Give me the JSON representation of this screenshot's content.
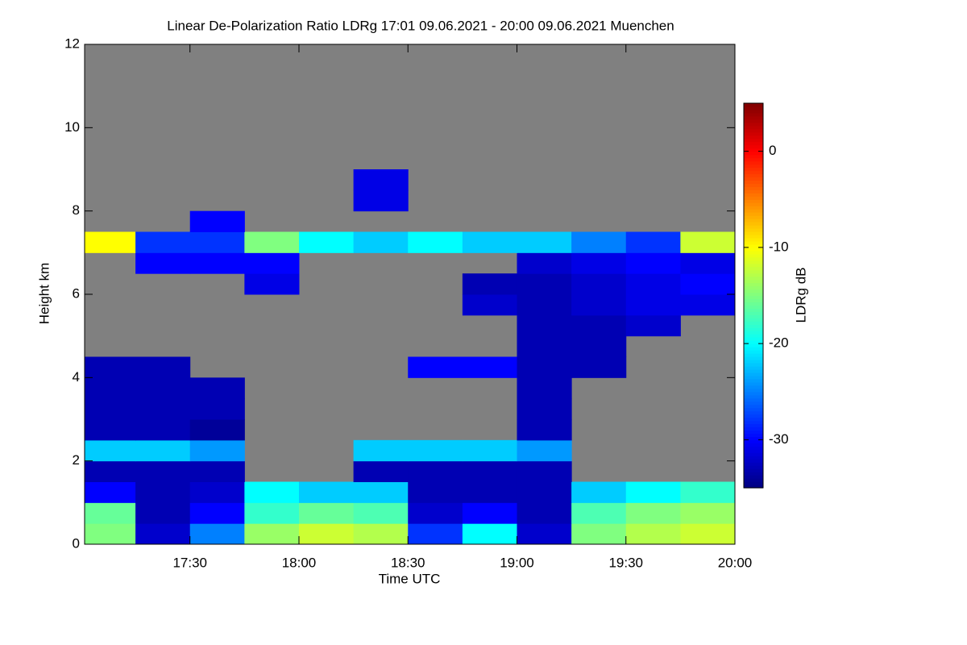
{
  "chart_data": {
    "type": "heatmap",
    "title": "Linear De-Polarization Ratio LDRg   17:01 09.06.2021 - 20:00 09.06.2021 Muenchen",
    "x_label": "Time UTC",
    "y_label": "Height km",
    "colorbar_label": "LDRg dB",
    "colormap": "jet",
    "background": "#808080",
    "xlim": [
      17.0167,
      20.0
    ],
    "xticks": [
      {
        "value": 17.5,
        "label": "17:30"
      },
      {
        "value": 18.0,
        "label": "18:00"
      },
      {
        "value": 18.5,
        "label": "18:30"
      },
      {
        "value": 19.0,
        "label": "19:00"
      },
      {
        "value": 19.5,
        "label": "19:30"
      },
      {
        "value": 20.0,
        "label": "20:00"
      }
    ],
    "ylim": [
      0,
      12
    ],
    "yticks": [
      0,
      2,
      4,
      6,
      8,
      10,
      12
    ],
    "clim": [
      -35,
      5
    ],
    "cticks": [
      0,
      -10,
      -20,
      -30
    ],
    "x": [
      17.125,
      17.375,
      17.625,
      17.875,
      18.125,
      18.375,
      18.625,
      18.875,
      19.125,
      19.375,
      19.625,
      19.875
    ],
    "y": [
      0.25,
      0.75,
      1.25,
      1.75,
      2.25,
      2.75,
      3.25,
      3.75,
      4.25,
      4.75,
      5.25,
      5.75,
      6.25,
      6.75,
      7.25,
      7.75,
      8.25,
      8.75,
      9.25,
      9.75,
      10.25,
      10.75,
      11.25,
      11.75
    ],
    "z": [
      [
        -15,
        -32,
        -25,
        -14,
        -12,
        -13,
        -28,
        -20,
        -32,
        -15,
        -13,
        -12
      ],
      [
        -16,
        -33,
        -30,
        -18,
        -16,
        -17,
        -32,
        -30,
        -33,
        -17,
        -15,
        -14
      ],
      [
        -30,
        -33,
        -32,
        -20,
        -22,
        -22,
        -33,
        -33,
        -33,
        -22,
        -20,
        -18
      ],
      [
        -33,
        -33,
        -33,
        null,
        null,
        -33,
        -33,
        -33,
        -33,
        null,
        null,
        null
      ],
      [
        -22,
        -22,
        -24,
        null,
        null,
        -22,
        -22,
        -22,
        -24,
        null,
        null,
        null
      ],
      [
        -33,
        -33,
        -34,
        null,
        null,
        null,
        null,
        null,
        -33,
        null,
        null,
        null
      ],
      [
        -33,
        -33,
        -33,
        null,
        null,
        null,
        null,
        null,
        -33,
        null,
        null,
        null
      ],
      [
        -33,
        -33,
        -33,
        null,
        null,
        null,
        null,
        null,
        -33,
        null,
        null,
        null
      ],
      [
        -33,
        -33,
        null,
        null,
        null,
        null,
        -30,
        -30,
        -33,
        -33,
        null,
        null
      ],
      [
        null,
        null,
        null,
        null,
        null,
        null,
        null,
        null,
        -33,
        -33,
        null,
        null
      ],
      [
        null,
        null,
        null,
        null,
        null,
        null,
        null,
        null,
        -33,
        -33,
        -32,
        null
      ],
      [
        null,
        null,
        null,
        null,
        null,
        null,
        null,
        -32,
        -33,
        -32,
        -31,
        -31
      ],
      [
        null,
        null,
        null,
        -31,
        null,
        null,
        null,
        -33,
        -33,
        -32,
        -31,
        -30
      ],
      [
        null,
        -30,
        -30,
        -30,
        null,
        null,
        null,
        null,
        -32,
        -31,
        -30,
        -31
      ],
      [
        -10,
        -28,
        -28,
        -15,
        -20,
        -22,
        -20,
        -22,
        -22,
        -25,
        -28,
        -12
      ],
      [
        null,
        null,
        -30,
        null,
        null,
        null,
        null,
        null,
        null,
        null,
        null,
        null
      ],
      [
        null,
        null,
        null,
        null,
        null,
        -31,
        null,
        null,
        null,
        null,
        null,
        null
      ],
      [
        null,
        null,
        null,
        null,
        null,
        -31,
        null,
        null,
        null,
        null,
        null,
        null
      ],
      [
        null,
        null,
        null,
        null,
        null,
        null,
        null,
        null,
        null,
        null,
        null,
        null
      ],
      [
        null,
        null,
        null,
        null,
        null,
        null,
        null,
        null,
        null,
        null,
        null,
        null
      ],
      [
        null,
        null,
        null,
        null,
        null,
        null,
        null,
        null,
        null,
        null,
        null,
        null
      ],
      [
        null,
        null,
        null,
        null,
        null,
        null,
        null,
        null,
        null,
        null,
        null,
        null
      ],
      [
        null,
        null,
        null,
        null,
        null,
        null,
        null,
        null,
        null,
        null,
        null,
        null
      ],
      [
        null,
        null,
        null,
        null,
        null,
        null,
        null,
        null,
        null,
        null,
        null,
        null
      ]
    ]
  }
}
